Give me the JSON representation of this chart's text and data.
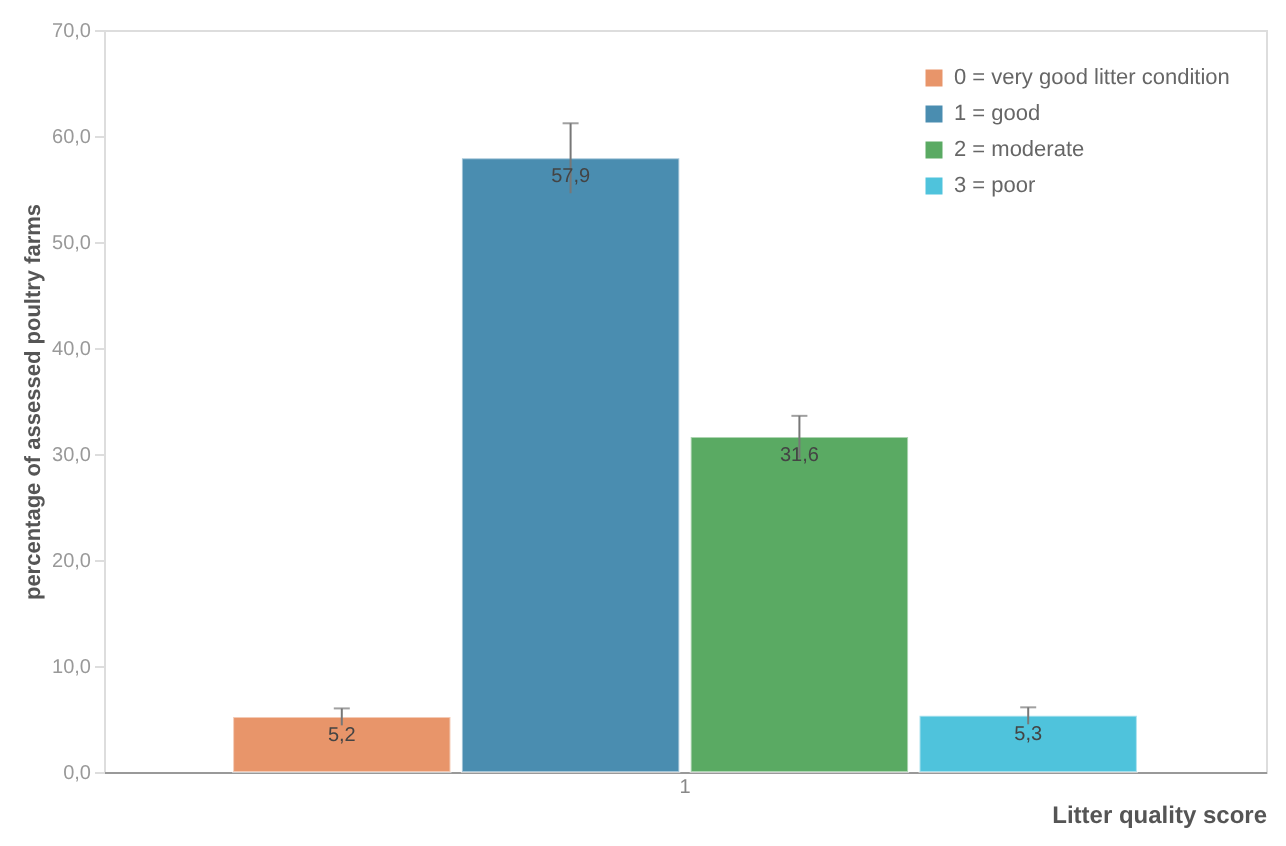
{
  "chart_data": {
    "type": "bar",
    "xlabel": "Litter quality score",
    "ylabel": "percentage of assessed poultry farms",
    "categories": [
      "1"
    ],
    "series": [
      {
        "name": "0 = very good litter condition",
        "color": "#e8956a",
        "values": [
          5.2
        ],
        "errors": [
          0.8
        ],
        "value_labels": [
          "5,2"
        ]
      },
      {
        "name": "1 = good",
        "color": "#4a8db0",
        "values": [
          57.9
        ],
        "errors": [
          3.3
        ],
        "value_labels": [
          "57,9"
        ]
      },
      {
        "name": "2 = moderate",
        "color": "#5aaa63",
        "values": [
          31.6
        ],
        "errors": [
          2.0
        ],
        "value_labels": [
          "31,6"
        ]
      },
      {
        "name": "3 = poor",
        "color": "#4fc3dc",
        "values": [
          5.3
        ],
        "errors": [
          0.8
        ],
        "value_labels": [
          "5,3"
        ]
      }
    ],
    "ylim": [
      0,
      70
    ],
    "yticks": [
      {
        "value": 0,
        "label": "0,0"
      },
      {
        "value": 10,
        "label": "10,0"
      },
      {
        "value": 20,
        "label": "20,0"
      },
      {
        "value": 30,
        "label": "30,0"
      },
      {
        "value": 40,
        "label": "40,0"
      },
      {
        "value": 50,
        "label": "50,0"
      },
      {
        "value": 60,
        "label": "60,0"
      },
      {
        "value": 70,
        "label": "70,0"
      }
    ],
    "grid": false,
    "legend": "top right"
  }
}
